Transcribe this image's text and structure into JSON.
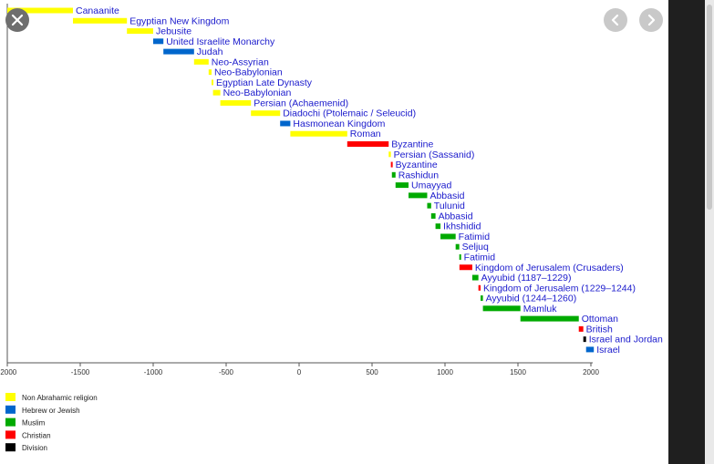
{
  "chart_data": {
    "type": "bar",
    "orientation": "horizontal-timeline",
    "xlim": [
      -2000,
      2000
    ],
    "x_ticks": [
      "-2000",
      "-1500",
      "-1000",
      "-500",
      "0",
      "500",
      "1000",
      "1500",
      "2000"
    ],
    "x_tick_values": [
      -2000,
      -1500,
      -1000,
      -500,
      0,
      500,
      1000,
      1500,
      2000
    ],
    "grid": false,
    "legend_position": "bottom-left",
    "category_colors": {
      "non_abrahamic": "#ffff00",
      "jewish": "#0066cc",
      "muslim": "#00aa00",
      "christian": "#ff0000",
      "division": "#000000"
    },
    "legend": [
      {
        "key": "non_abrahamic",
        "label": "Non Abrahamic religion"
      },
      {
        "key": "jewish",
        "label": "Hebrew or Jewish"
      },
      {
        "key": "muslim",
        "label": "Muslim"
      },
      {
        "key": "christian",
        "label": "Christian"
      },
      {
        "key": "division",
        "label": "Division"
      }
    ],
    "periods": [
      {
        "label": "Canaanite",
        "start": -2000,
        "end": -1550,
        "cat": "non_abrahamic"
      },
      {
        "label": "Egyptian New Kingdom",
        "start": -1550,
        "end": -1180,
        "cat": "non_abrahamic"
      },
      {
        "label": "Jebusite",
        "start": -1180,
        "end": -1000,
        "cat": "non_abrahamic"
      },
      {
        "label": "United Israelite Monarchy",
        "start": -1000,
        "end": -930,
        "cat": "jewish"
      },
      {
        "label": "Judah",
        "start": -930,
        "end": -720,
        "cat": "jewish"
      },
      {
        "label": "Neo-Assyrian",
        "start": -720,
        "end": -620,
        "cat": "non_abrahamic"
      },
      {
        "label": "Neo-Babylonian",
        "start": -620,
        "end": -600,
        "cat": "non_abrahamic"
      },
      {
        "label": "Egyptian Late Dynasty",
        "start": -600,
        "end": -590,
        "cat": "non_abrahamic"
      },
      {
        "label": "Neo-Babylonian",
        "start": -590,
        "end": -540,
        "cat": "non_abrahamic"
      },
      {
        "label": "Persian (Achaemenid)",
        "start": -540,
        "end": -330,
        "cat": "non_abrahamic"
      },
      {
        "label": "Diadochi (Ptolemaic / Seleucid)",
        "start": -330,
        "end": -130,
        "cat": "non_abrahamic"
      },
      {
        "label": "Hasmonean Kingdom",
        "start": -130,
        "end": -60,
        "cat": "jewish"
      },
      {
        "label": "Roman",
        "start": -60,
        "end": 330,
        "cat": "non_abrahamic"
      },
      {
        "label": "Byzantine",
        "start": 330,
        "end": 614,
        "cat": "christian"
      },
      {
        "label": "Persian (Sassanid)",
        "start": 614,
        "end": 629,
        "cat": "non_abrahamic"
      },
      {
        "label": "Byzantine",
        "start": 629,
        "end": 636,
        "cat": "christian"
      },
      {
        "label": "Rashidun",
        "start": 636,
        "end": 661,
        "cat": "muslim"
      },
      {
        "label": "Umayyad",
        "start": 661,
        "end": 750,
        "cat": "muslim"
      },
      {
        "label": "Abbasid",
        "start": 750,
        "end": 878,
        "cat": "muslim"
      },
      {
        "label": "Tulunid",
        "start": 878,
        "end": 905,
        "cat": "muslim"
      },
      {
        "label": "Abbasid",
        "start": 905,
        "end": 935,
        "cat": "muslim"
      },
      {
        "label": "Ikhshidid",
        "start": 935,
        "end": 969,
        "cat": "muslim"
      },
      {
        "label": "Fatimid",
        "start": 969,
        "end": 1073,
        "cat": "muslim"
      },
      {
        "label": "Seljuq",
        "start": 1073,
        "end": 1098,
        "cat": "muslim"
      },
      {
        "label": "Fatimid",
        "start": 1098,
        "end": 1099,
        "cat": "muslim"
      },
      {
        "label": "Kingdom of Jerusalem (Crusaders)",
        "start": 1099,
        "end": 1187,
        "cat": "christian"
      },
      {
        "label": "Ayyubid (1187–1229)",
        "start": 1187,
        "end": 1229,
        "cat": "muslim"
      },
      {
        "label": "Kingdom of Jerusalem (1229–1244)",
        "start": 1229,
        "end": 1244,
        "cat": "christian"
      },
      {
        "label": "Ayyubid (1244–1260)",
        "start": 1244,
        "end": 1260,
        "cat": "muslim"
      },
      {
        "label": "Mamluk",
        "start": 1260,
        "end": 1517,
        "cat": "muslim"
      },
      {
        "label": "Ottoman",
        "start": 1517,
        "end": 1917,
        "cat": "muslim"
      },
      {
        "label": "British",
        "start": 1917,
        "end": 1948,
        "cat": "christian"
      },
      {
        "label": "Israel and Jordan",
        "start": 1948,
        "end": 1967,
        "cat": "division"
      },
      {
        "label": "Israel",
        "start": 1967,
        "end": 2020,
        "cat": "jewish"
      }
    ]
  },
  "controls": {
    "close_icon": "close-icon",
    "prev_icon": "chevron-left-icon",
    "next_icon": "chevron-right-icon"
  }
}
